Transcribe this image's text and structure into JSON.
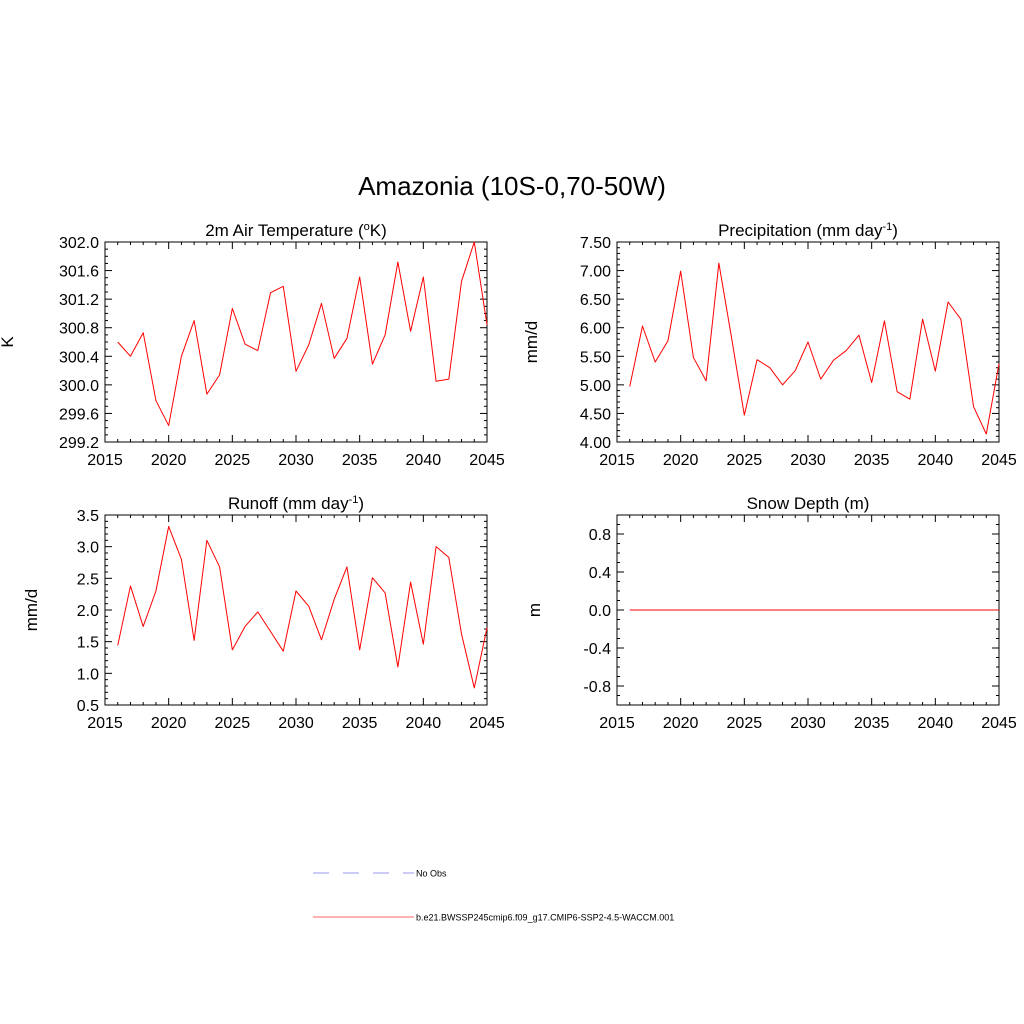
{
  "title": "Amazonia (10S-0,70-50W)",
  "colors": {
    "series": "#ff0000",
    "obs": "#9999ee",
    "frame": "#000000"
  },
  "legend": [
    {
      "label": "No Obs",
      "style": "dashed",
      "color": "#9999ee"
    },
    {
      "label": "b.e21.BWSSP245cmip6.f09_g17.CMIP6-SSP2-4.5-WACCM.001",
      "style": "solid",
      "color": "#ff6666"
    }
  ],
  "chart_data": [
    {
      "type": "line",
      "title_main": "2m Air Temperature (",
      "title_sup_pre": "o",
      "title_after_sup_pre": "K)",
      "title_sup": "",
      "title_end": "",
      "ylabel": "K",
      "xlim": [
        2015,
        2045
      ],
      "ylim": [
        299.2,
        302.0
      ],
      "xticks": [
        2015,
        2020,
        2025,
        2030,
        2035,
        2040,
        2045
      ],
      "xtick_labels": [
        "2015",
        "2020",
        "2025",
        "2030",
        "2035",
        "2040",
        "2045"
      ],
      "yticks": [
        299.2,
        299.6,
        300.0,
        300.4,
        300.8,
        301.2,
        301.6,
        302.0
      ],
      "ytick_labels": [
        "299.2",
        "299.6",
        "300.0",
        "300.4",
        "300.8",
        "301.2",
        "301.6",
        "302.0"
      ],
      "yminor": 0.1,
      "xminor": 1,
      "series": [
        {
          "name": "b.e21.BWSSP245cmip6.f09_g17.CMIP6-SSP2-4.5-WACCM.001",
          "x": [
            2016,
            2017,
            2018,
            2019,
            2020,
            2021,
            2022,
            2023,
            2024,
            2025,
            2026,
            2027,
            2028,
            2029,
            2030,
            2031,
            2032,
            2033,
            2034,
            2035,
            2036,
            2037,
            2038,
            2039,
            2040,
            2041,
            2042,
            2043,
            2044,
            2045
          ],
          "y": [
            300.6,
            300.4,
            300.73,
            299.78,
            299.43,
            300.4,
            300.9,
            299.87,
            300.14,
            301.07,
            300.57,
            300.48,
            301.29,
            301.38,
            300.19,
            300.56,
            301.14,
            300.37,
            300.65,
            301.51,
            300.29,
            300.7,
            301.72,
            300.75,
            301.51,
            300.05,
            300.08,
            301.45,
            302.0,
            300.84
          ]
        }
      ]
    },
    {
      "type": "line",
      "title_main": "Precipitation (mm day",
      "title_sup": "-1",
      "title_end": ")",
      "ylabel": "mm/d",
      "xlim": [
        2015,
        2045
      ],
      "ylim": [
        4.0,
        7.5
      ],
      "xticks": [
        2015,
        2020,
        2025,
        2030,
        2035,
        2040,
        2045
      ],
      "xtick_labels": [
        "2015",
        "2020",
        "2025",
        "2030",
        "2035",
        "2040",
        "2045"
      ],
      "yticks": [
        4.0,
        4.5,
        5.0,
        5.5,
        6.0,
        6.5,
        7.0,
        7.5
      ],
      "ytick_labels": [
        "4.00",
        "4.50",
        "5.00",
        "5.50",
        "6.00",
        "6.50",
        "7.00",
        "7.50"
      ],
      "yminor": 0.1,
      "xminor": 1,
      "series": [
        {
          "name": "b.e21.BWSSP245cmip6.f09_g17.CMIP6-SSP2-4.5-WACCM.001",
          "x": [
            2016,
            2017,
            2018,
            2019,
            2020,
            2021,
            2022,
            2023,
            2024,
            2025,
            2026,
            2027,
            2028,
            2029,
            2030,
            2031,
            2032,
            2033,
            2034,
            2035,
            2036,
            2037,
            2038,
            2039,
            2040,
            2041,
            2042,
            2043,
            2044,
            2045
          ],
          "y": [
            4.97,
            6.03,
            5.4,
            5.77,
            6.99,
            5.48,
            5.07,
            7.13,
            5.82,
            4.47,
            5.44,
            5.3,
            5.0,
            5.25,
            5.75,
            5.1,
            5.43,
            5.6,
            5.87,
            5.04,
            6.12,
            4.88,
            4.75,
            6.15,
            5.24,
            6.45,
            6.15,
            4.62,
            4.14,
            5.37
          ]
        }
      ]
    },
    {
      "type": "line",
      "title_main": "Runoff (mm day",
      "title_sup": "-1",
      "title_end": ")",
      "ylabel": "mm/d",
      "xlim": [
        2015,
        2045
      ],
      "ylim": [
        0.5,
        3.5
      ],
      "xticks": [
        2015,
        2020,
        2025,
        2030,
        2035,
        2040,
        2045
      ],
      "xtick_labels": [
        "2015",
        "2020",
        "2025",
        "2030",
        "2035",
        "2040",
        "2045"
      ],
      "yticks": [
        0.5,
        1.0,
        1.5,
        2.0,
        2.5,
        3.0,
        3.5
      ],
      "ytick_labels": [
        "0.5",
        "1.0",
        "1.5",
        "2.0",
        "2.5",
        "3.0",
        "3.5"
      ],
      "yminor": 0.1,
      "xminor": 1,
      "series": [
        {
          "name": "b.e21.BWSSP245cmip6.f09_g17.CMIP6-SSP2-4.5-WACCM.001",
          "x": [
            2016,
            2017,
            2018,
            2019,
            2020,
            2021,
            2022,
            2023,
            2024,
            2025,
            2026,
            2027,
            2028,
            2029,
            2030,
            2031,
            2032,
            2033,
            2034,
            2035,
            2036,
            2037,
            2038,
            2039,
            2040,
            2041,
            2042,
            2043,
            2044,
            2045
          ],
          "y": [
            1.44,
            2.38,
            1.74,
            2.3,
            3.32,
            2.8,
            1.52,
            3.1,
            2.68,
            1.37,
            1.74,
            1.97,
            1.66,
            1.35,
            2.3,
            2.06,
            1.53,
            2.17,
            2.68,
            1.37,
            2.51,
            2.27,
            1.1,
            2.44,
            1.46,
            3.0,
            2.83,
            1.62,
            0.77,
            1.72
          ]
        }
      ]
    },
    {
      "type": "line",
      "title_main": "Snow Depth (m)",
      "title_sup": "",
      "title_end": "",
      "ylabel": "m",
      "xlim": [
        2015,
        2045
      ],
      "ylim": [
        -1.0,
        1.0
      ],
      "xticks": [
        2015,
        2020,
        2025,
        2030,
        2035,
        2040,
        2045
      ],
      "xtick_labels": [
        "2015",
        "2020",
        "2025",
        "2030",
        "2035",
        "2040",
        "2045"
      ],
      "yticks": [
        -0.8,
        -0.4,
        0.0,
        0.4,
        0.8
      ],
      "ytick_labels": [
        "-0.8",
        "-0.4",
        "0.0",
        "0.4",
        "0.8"
      ],
      "yminor": 0.1,
      "xminor": 1,
      "series": [
        {
          "name": "b.e21.BWSSP245cmip6.f09_g17.CMIP6-SSP2-4.5-WACCM.001",
          "x": [
            2016,
            2017,
            2018,
            2019,
            2020,
            2021,
            2022,
            2023,
            2024,
            2025,
            2026,
            2027,
            2028,
            2029,
            2030,
            2031,
            2032,
            2033,
            2034,
            2035,
            2036,
            2037,
            2038,
            2039,
            2040,
            2041,
            2042,
            2043,
            2044,
            2045
          ],
          "y": [
            0,
            0,
            0,
            0,
            0,
            0,
            0,
            0,
            0,
            0,
            0,
            0,
            0,
            0,
            0,
            0,
            0,
            0,
            0,
            0,
            0,
            0,
            0,
            0,
            0,
            0,
            0,
            0,
            0,
            0
          ]
        }
      ]
    }
  ]
}
